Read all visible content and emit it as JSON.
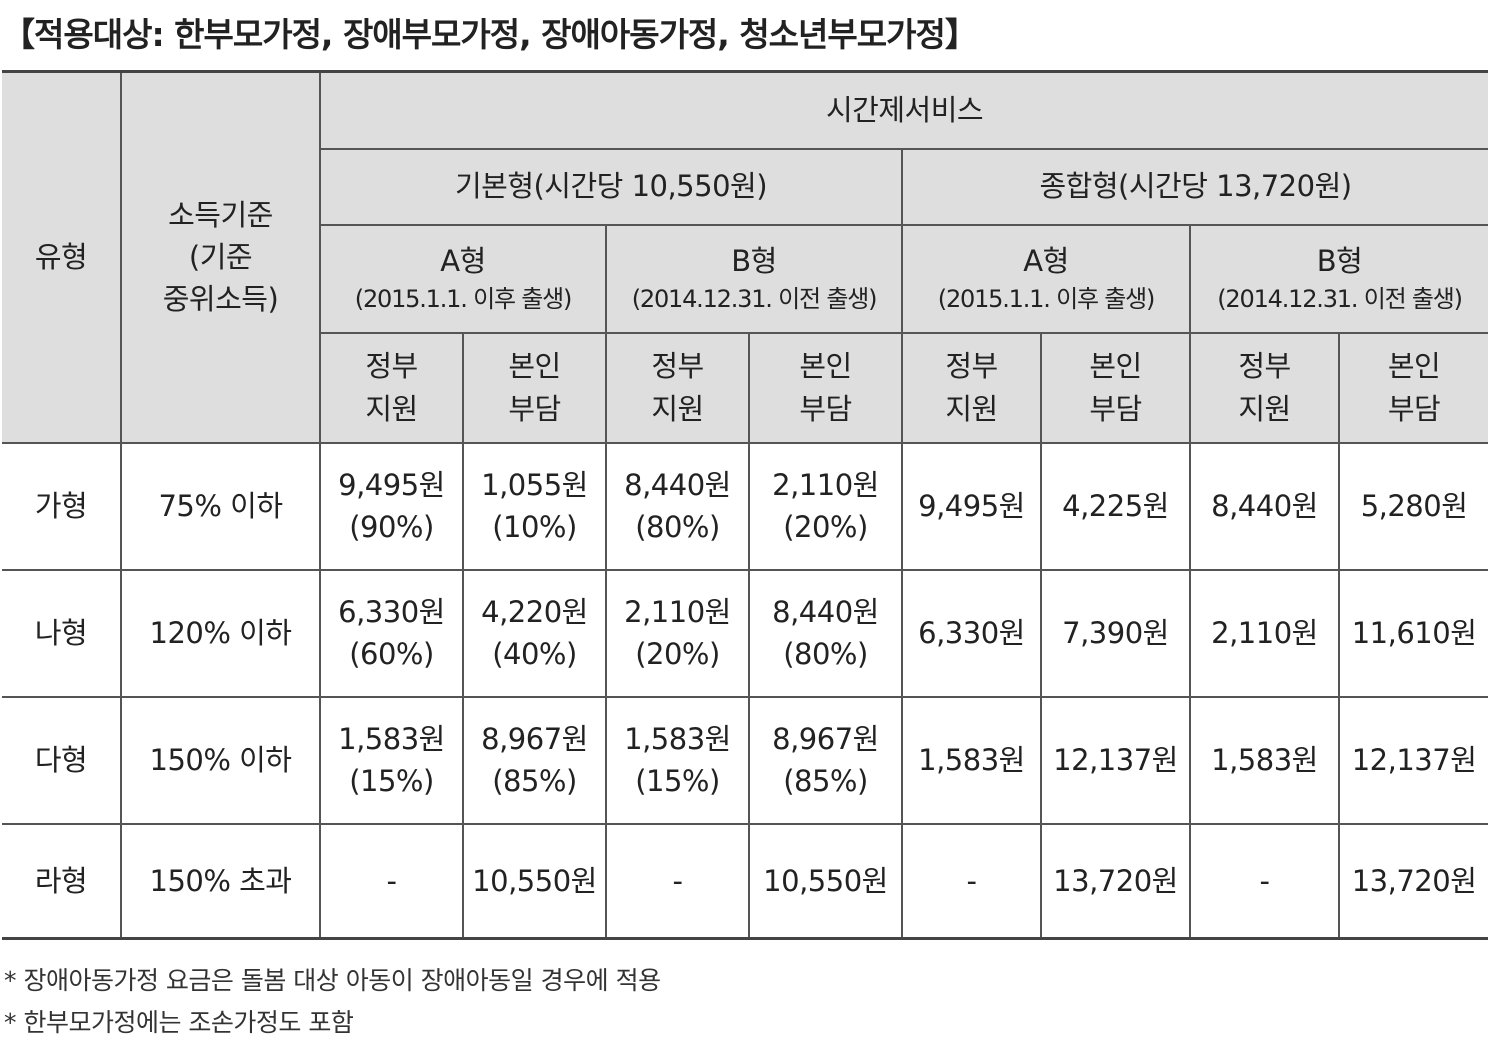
{
  "title": "【적용대상: 한부모가정, 장애부모가정, 장애아동가정, 청소년부모가정】",
  "header": {
    "type": "유형",
    "income": [
      "소득기준",
      "(기준",
      "중위소득)"
    ],
    "service": "시간제서비스",
    "plans": [
      "기본형(시간당 10,550원)",
      "종합형(시간당 13,720원)"
    ],
    "subtypes": [
      {
        "name": "A형",
        "note": "(2015.1.1. 이후 출생)"
      },
      {
        "name": "B형",
        "note": "(2014.12.31. 이전 출생)"
      },
      {
        "name": "A형",
        "note": "(2015.1.1. 이후 출생)"
      },
      {
        "name": "B형",
        "note": "(2014.12.31. 이전 출생)"
      }
    ],
    "support": [
      "정부",
      "지원"
    ],
    "copay": [
      "본인",
      "부담"
    ]
  },
  "rows": [
    {
      "type": "가형",
      "income": "75% 이하",
      "cells": [
        [
          "9,495원",
          "(90%)"
        ],
        [
          "1,055원",
          "(10%)"
        ],
        [
          "8,440원",
          "(80%)"
        ],
        [
          "2,110원",
          "(20%)"
        ],
        [
          "9,495원"
        ],
        [
          "4,225원"
        ],
        [
          "8,440원"
        ],
        [
          "5,280원"
        ]
      ]
    },
    {
      "type": "나형",
      "income": "120% 이하",
      "cells": [
        [
          "6,330원",
          "(60%)"
        ],
        [
          "4,220원",
          "(40%)"
        ],
        [
          "2,110원",
          "(20%)"
        ],
        [
          "8,440원",
          "(80%)"
        ],
        [
          "6,330원"
        ],
        [
          "7,390원"
        ],
        [
          "2,110원"
        ],
        [
          "11,610원"
        ]
      ]
    },
    {
      "type": "다형",
      "income": "150% 이하",
      "cells": [
        [
          "1,583원",
          "(15%)"
        ],
        [
          "8,967원",
          "(85%)"
        ],
        [
          "1,583원",
          "(15%)"
        ],
        [
          "8,967원",
          "(85%)"
        ],
        [
          "1,583원"
        ],
        [
          "12,137원"
        ],
        [
          "1,583원"
        ],
        [
          "12,137원"
        ]
      ]
    },
    {
      "type": "라형",
      "income": "150% 초과",
      "cells": [
        [
          "-"
        ],
        [
          "10,550원"
        ],
        [
          "-"
        ],
        [
          "10,550원"
        ],
        [
          "-"
        ],
        [
          "13,720원"
        ],
        [
          "-"
        ],
        [
          "13,720원"
        ]
      ]
    }
  ],
  "notes": [
    "* 장애아동가정 요금은 돌봄 대상 아동이 장애아동일 경우에 적용",
    "* 한부모가정에는 조손가정도 포함"
  ]
}
